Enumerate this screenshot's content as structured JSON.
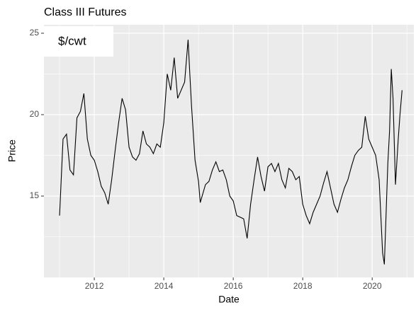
{
  "chart_data": {
    "type": "line",
    "title": "Class III Futures",
    "annotation": "$/cwt",
    "x_label": "Date",
    "y_label": "Price",
    "x": [
      2011.0,
      2011.1,
      2011.2,
      2011.3,
      2011.4,
      2011.5,
      2011.6,
      2011.7,
      2011.8,
      2011.9,
      2012.0,
      2012.1,
      2012.2,
      2012.3,
      2012.4,
      2012.5,
      2012.6,
      2012.7,
      2012.8,
      2012.9,
      2013.0,
      2013.1,
      2013.2,
      2013.3,
      2013.4,
      2013.5,
      2013.6,
      2013.7,
      2013.8,
      2013.9,
      2014.0,
      2014.1,
      2014.2,
      2014.3,
      2014.4,
      2014.5,
      2014.6,
      2014.7,
      2014.75,
      2014.8,
      2014.9,
      2015.0,
      2015.05,
      2015.2,
      2015.3,
      2015.4,
      2015.5,
      2015.6,
      2015.7,
      2015.8,
      2015.9,
      2016.0,
      2016.1,
      2016.2,
      2016.3,
      2016.4,
      2016.5,
      2016.6,
      2016.7,
      2016.8,
      2016.9,
      2017.0,
      2017.1,
      2017.2,
      2017.3,
      2017.4,
      2017.5,
      2017.6,
      2017.7,
      2017.8,
      2017.9,
      2018.0,
      2018.1,
      2018.2,
      2018.3,
      2018.4,
      2018.5,
      2018.6,
      2018.7,
      2018.8,
      2018.9,
      2019.0,
      2019.1,
      2019.2,
      2019.3,
      2019.4,
      2019.5,
      2019.6,
      2019.7,
      2019.8,
      2019.9,
      2020.0,
      2020.1,
      2020.2,
      2020.3,
      2020.35,
      2020.45,
      2020.5,
      2020.55,
      2020.6,
      2020.67,
      2020.75,
      2020.8,
      2020.86
    ],
    "series": [
      {
        "name": "Price",
        "color": "#000000",
        "values": [
          13.8,
          18.5,
          18.8,
          16.6,
          16.3,
          19.8,
          20.2,
          21.3,
          18.5,
          17.5,
          17.2,
          16.5,
          15.6,
          15.2,
          14.5,
          16.0,
          17.8,
          19.5,
          21.0,
          20.3,
          18.0,
          17.4,
          17.2,
          17.6,
          19.0,
          18.2,
          18.0,
          17.6,
          18.2,
          18.0,
          19.5,
          22.5,
          21.5,
          23.5,
          21.0,
          21.5,
          22.0,
          24.6,
          22.5,
          20.5,
          17.2,
          15.9,
          14.6,
          15.7,
          15.9,
          16.6,
          17.1,
          16.5,
          16.6,
          16.0,
          15.0,
          14.7,
          13.8,
          13.7,
          13.6,
          12.4,
          14.5,
          16.0,
          17.4,
          16.2,
          15.3,
          16.8,
          17.0,
          16.5,
          17.0,
          16.0,
          15.5,
          16.7,
          16.5,
          16.0,
          16.2,
          14.5,
          13.8,
          13.3,
          14.0,
          14.5,
          15.0,
          15.8,
          16.5,
          15.5,
          14.5,
          14.0,
          14.8,
          15.5,
          16.0,
          16.8,
          17.5,
          17.8,
          18.0,
          19.9,
          18.5,
          18.0,
          17.5,
          16.0,
          11.5,
          10.8,
          17.0,
          19.0,
          22.8,
          21.0,
          15.7,
          18.5,
          20.0,
          21.5
        ]
      }
    ],
    "xlim": [
      2010.55,
      2021.2
    ],
    "xticks": [
      2012,
      2014,
      2016,
      2018,
      2020
    ],
    "xminor": [
      2011,
      2013,
      2015,
      2017,
      2019,
      2021
    ],
    "ylim": [
      10.0,
      25.52
    ],
    "yticks": [
      15,
      20,
      25
    ],
    "yminor": [
      12.5,
      17.5,
      22.5
    ],
    "grid": true
  }
}
